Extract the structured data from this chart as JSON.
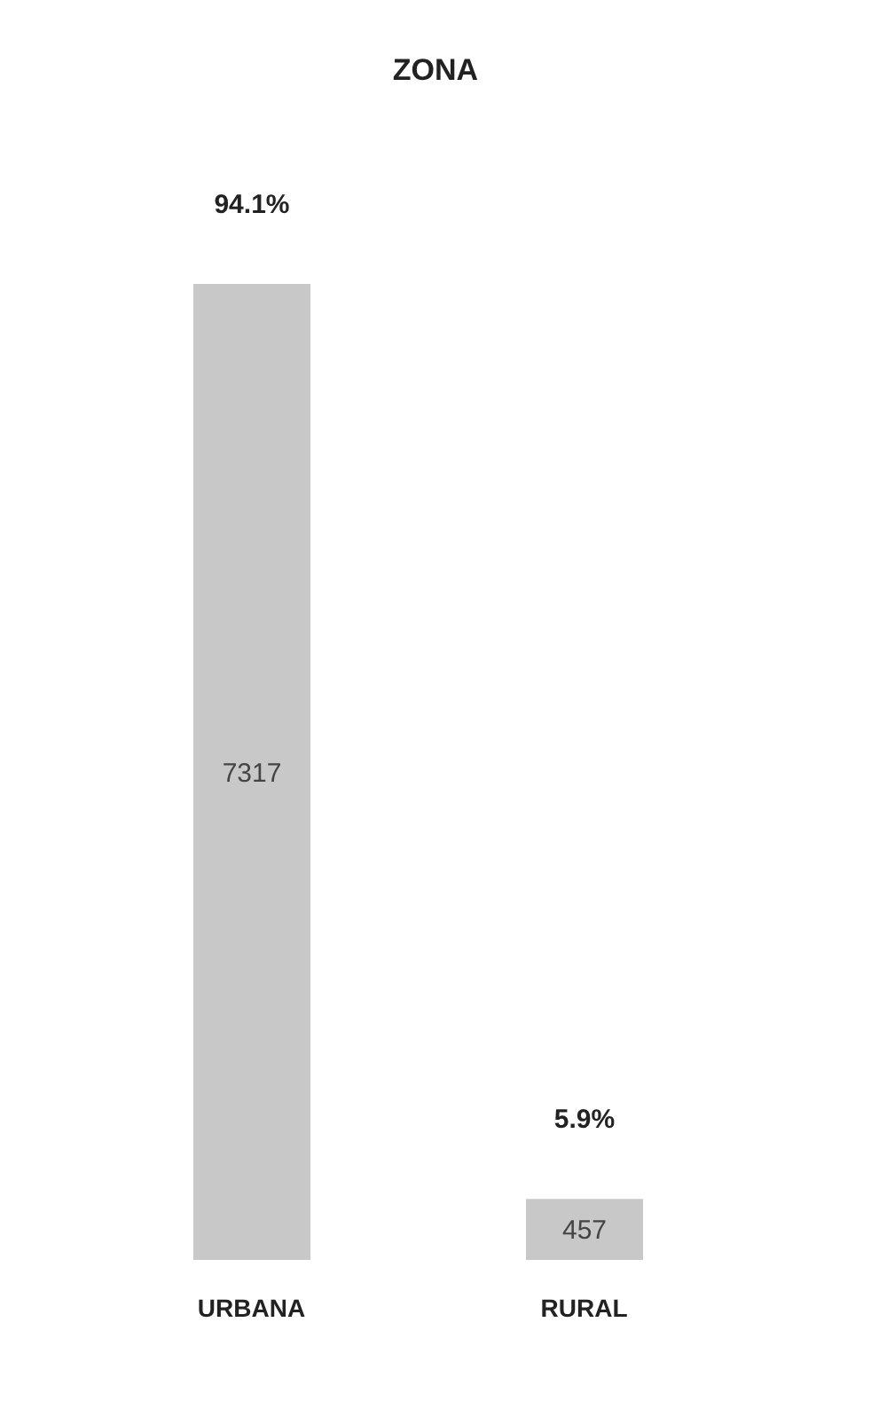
{
  "chart_data": {
    "type": "bar",
    "title": "ZONA",
    "categories": [
      "URBANA",
      "RURAL"
    ],
    "values": [
      7317,
      457
    ],
    "color": "#c8c8c8",
    "data_labels": true,
    "annotations": [
      "94.1%",
      "5.9%"
    ]
  }
}
